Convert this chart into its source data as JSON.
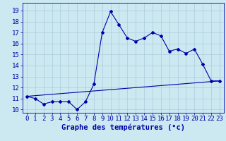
{
  "title": "",
  "xlabel": "Graphe des températures (°c)",
  "bg_color": "#cce8f0",
  "grid_color": "#aaccdd",
  "line_color": "#0000aa",
  "x_ticks": [
    0,
    1,
    2,
    3,
    4,
    5,
    6,
    7,
    8,
    9,
    10,
    11,
    12,
    13,
    14,
    15,
    16,
    17,
    18,
    19,
    20,
    21,
    22,
    23
  ],
  "y_ticks": [
    10,
    11,
    12,
    13,
    14,
    15,
    16,
    17,
    18,
    19
  ],
  "ylim": [
    9.7,
    19.7
  ],
  "xlim": [
    -0.5,
    23.5
  ],
  "line1_x": [
    0,
    1,
    2,
    3,
    4,
    5,
    6,
    7,
    8,
    9,
    10,
    11,
    12,
    13,
    14,
    15,
    16,
    17,
    18,
    19,
    20,
    21,
    22,
    23
  ],
  "line1_y": [
    11.2,
    11.0,
    10.5,
    10.7,
    10.7,
    10.7,
    10.0,
    10.7,
    12.3,
    17.0,
    18.9,
    17.7,
    16.5,
    16.2,
    16.5,
    17.0,
    16.7,
    15.3,
    15.5,
    15.1,
    15.5,
    14.1,
    12.6,
    12.6
  ],
  "line2_x": [
    0,
    23
  ],
  "line2_y": [
    11.2,
    12.6
  ],
  "xlabel_fontsize": 7.5,
  "tick_fontsize": 6.5
}
